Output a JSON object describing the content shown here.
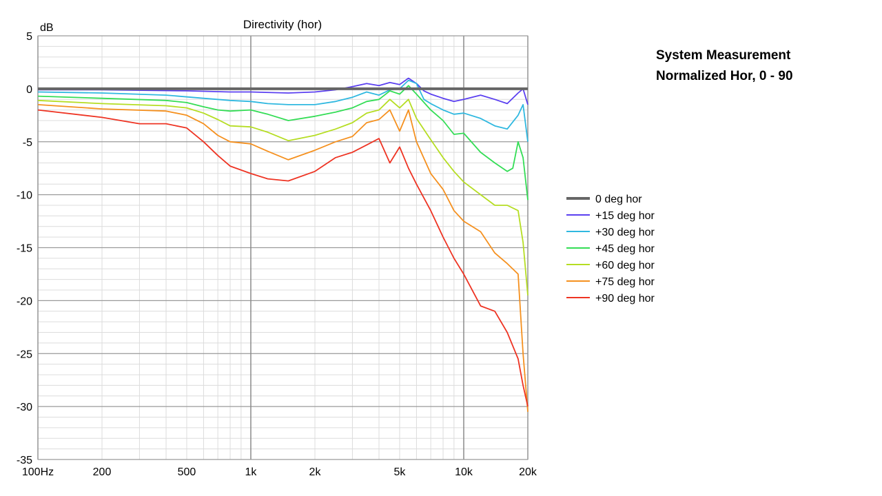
{
  "annotation": {
    "line1": "System Measurement",
    "line2": "Normalized Hor, 0 - 90"
  },
  "chart_data": {
    "type": "line",
    "title": "Directivity (hor)",
    "xlabel": "",
    "ylabel": "dB",
    "x_scale": "log",
    "xlim": [
      100,
      20000
    ],
    "ylim": [
      -35,
      5
    ],
    "grid": true,
    "legend_position": "right",
    "x_ticks": [
      {
        "value": 100,
        "label": "100Hz"
      },
      {
        "value": 200,
        "label": "200"
      },
      {
        "value": 500,
        "label": "500"
      },
      {
        "value": 1000,
        "label": "1k"
      },
      {
        "value": 2000,
        "label": "2k"
      },
      {
        "value": 5000,
        "label": "5k"
      },
      {
        "value": 10000,
        "label": "10k"
      },
      {
        "value": 20000,
        "label": "20k"
      }
    ],
    "y_ticks": [
      5,
      0,
      -5,
      -10,
      -15,
      -20,
      -25,
      -30,
      -35
    ],
    "series": [
      {
        "name": "0 deg hor",
        "color": "#666666",
        "x": [
          100,
          20000
        ],
        "y": [
          0,
          0
        ]
      },
      {
        "name": "+15 deg hor",
        "color": "#5a3ff0",
        "x": [
          100,
          200,
          500,
          800,
          1000,
          1500,
          2000,
          2500,
          3000,
          3500,
          4000,
          4500,
          5000,
          5500,
          6000,
          6500,
          7000,
          8000,
          9000,
          10000,
          12000,
          14000,
          16000,
          18000,
          19000,
          20000
        ],
        "y": [
          -0.1,
          -0.1,
          -0.2,
          -0.3,
          -0.3,
          -0.4,
          -0.3,
          -0.1,
          0.2,
          0.5,
          0.3,
          0.6,
          0.4,
          1.0,
          0.5,
          -0.2,
          -0.5,
          -0.9,
          -1.2,
          -1.0,
          -0.6,
          -1.0,
          -1.4,
          -0.4,
          0.0,
          -1.5
        ]
      },
      {
        "name": "+30 deg hor",
        "color": "#2fb8e0",
        "x": [
          100,
          200,
          400,
          600,
          800,
          1000,
          1200,
          1500,
          2000,
          2500,
          3000,
          3500,
          4000,
          4500,
          5000,
          5500,
          6000,
          6500,
          7000,
          8000,
          9000,
          10000,
          12000,
          14000,
          16000,
          18000,
          19000,
          20000
        ],
        "y": [
          -0.3,
          -0.4,
          -0.6,
          -0.9,
          -1.1,
          -1.2,
          -1.4,
          -1.5,
          -1.5,
          -1.2,
          -0.8,
          -0.3,
          -0.6,
          -0.1,
          0.0,
          0.8,
          0.5,
          -1.0,
          -1.4,
          -2.0,
          -2.4,
          -2.3,
          -2.8,
          -3.5,
          -3.8,
          -2.5,
          -1.5,
          -5.0
        ]
      },
      {
        "name": "+45 deg hor",
        "color": "#33dd55",
        "x": [
          100,
          200,
          400,
          500,
          600,
          700,
          800,
          1000,
          1200,
          1500,
          2000,
          2500,
          3000,
          3500,
          4000,
          4500,
          5000,
          5500,
          6000,
          7000,
          8000,
          9000,
          10000,
          12000,
          14000,
          16000,
          17000,
          18000,
          19000,
          20000
        ],
        "y": [
          -0.7,
          -0.9,
          -1.1,
          -1.3,
          -1.7,
          -2.0,
          -2.1,
          -2.0,
          -2.4,
          -3.0,
          -2.6,
          -2.2,
          -1.8,
          -1.2,
          -1.0,
          -0.2,
          -0.5,
          0.3,
          -0.5,
          -2.0,
          -3.0,
          -4.3,
          -4.2,
          -6.0,
          -7.0,
          -7.8,
          -7.5,
          -5.0,
          -6.5,
          -10.5
        ]
      },
      {
        "name": "+60 deg hor",
        "color": "#b5dd22",
        "x": [
          100,
          200,
          400,
          500,
          600,
          700,
          800,
          1000,
          1200,
          1500,
          2000,
          2500,
          3000,
          3500,
          4000,
          4500,
          5000,
          5500,
          6000,
          7000,
          8000,
          9000,
          10000,
          12000,
          14000,
          16000,
          18000,
          19000,
          20000
        ],
        "y": [
          -1.1,
          -1.4,
          -1.6,
          -1.8,
          -2.3,
          -2.9,
          -3.5,
          -3.6,
          -4.1,
          -4.9,
          -4.4,
          -3.8,
          -3.2,
          -2.3,
          -2.0,
          -1.0,
          -1.8,
          -1.0,
          -2.8,
          -4.8,
          -6.5,
          -7.8,
          -8.8,
          -10.0,
          -11.0,
          -11.0,
          -11.5,
          -14.5,
          -19.5
        ]
      },
      {
        "name": "+75 deg hor",
        "color": "#f5901e",
        "x": [
          100,
          200,
          400,
          500,
          600,
          700,
          800,
          1000,
          1200,
          1500,
          2000,
          2500,
          3000,
          3500,
          4000,
          4500,
          5000,
          5500,
          6000,
          7000,
          8000,
          9000,
          10000,
          12000,
          14000,
          16000,
          18000,
          19000,
          20000
        ],
        "y": [
          -1.5,
          -1.9,
          -2.1,
          -2.5,
          -3.3,
          -4.4,
          -5.0,
          -5.2,
          -5.9,
          -6.7,
          -5.8,
          -5.0,
          -4.5,
          -3.2,
          -2.9,
          -2.0,
          -4.0,
          -2.0,
          -5.0,
          -8.0,
          -9.5,
          -11.5,
          -12.5,
          -13.5,
          -15.5,
          -16.5,
          -17.5,
          -25.0,
          -30.5
        ]
      },
      {
        "name": "+90 deg hor",
        "color": "#ee3322",
        "x": [
          100,
          200,
          300,
          400,
          500,
          600,
          700,
          800,
          1000,
          1200,
          1500,
          2000,
          2500,
          3000,
          3500,
          4000,
          4500,
          5000,
          5500,
          6000,
          7000,
          8000,
          9000,
          10000,
          12000,
          14000,
          16000,
          18000,
          19000,
          20000
        ],
        "y": [
          -2.0,
          -2.7,
          -3.3,
          -3.3,
          -3.7,
          -5.0,
          -6.3,
          -7.3,
          -8.0,
          -8.5,
          -8.7,
          -7.8,
          -6.5,
          -6.0,
          -5.3,
          -4.7,
          -7.0,
          -5.5,
          -7.5,
          -9.0,
          -11.5,
          -14.0,
          -16.0,
          -17.5,
          -20.5,
          -21.0,
          -23.0,
          -25.5,
          -28.0,
          -30.0
        ]
      }
    ]
  }
}
